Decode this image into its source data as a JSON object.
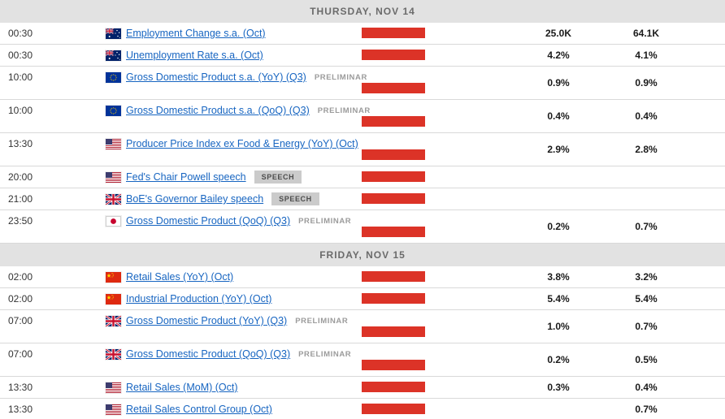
{
  "calendar": {
    "sections": [
      {
        "header": "THURSDAY, NOV 14",
        "rows": [
          {
            "time": "00:30",
            "country": "AU",
            "event": "Employment Change s.a. (Oct)",
            "volatility": "high",
            "consensus": "25.0K",
            "previous": "64.1K"
          },
          {
            "time": "00:30",
            "country": "AU",
            "event": "Unemployment Rate s.a. (Oct)",
            "volatility": "high",
            "consensus": "4.2%",
            "previous": "4.1%"
          },
          {
            "time": "10:00",
            "country": "EU",
            "event": "Gross Domestic Product s.a. (YoY) (Q3)",
            "tag": "PRELIMINAR",
            "volatility": "high",
            "consensus": "0.9%",
            "previous": "0.9%"
          },
          {
            "time": "10:00",
            "country": "EU",
            "event": "Gross Domestic Product s.a. (QoQ) (Q3)",
            "tag": "PRELIMINAR",
            "volatility": "high",
            "consensus": "0.4%",
            "previous": "0.4%"
          },
          {
            "time": "13:30",
            "country": "US",
            "event": "Producer Price Index ex Food & Energy (YoY) (Oct)",
            "volatility": "high",
            "consensus": "2.9%",
            "previous": "2.8%"
          },
          {
            "time": "20:00",
            "country": "US",
            "event": "Fed's Chair Powell speech",
            "badge": "SPEECH",
            "volatility": "high"
          },
          {
            "time": "21:00",
            "country": "GB",
            "event": "BoE's Governor Bailey speech",
            "badge": "SPEECH",
            "volatility": "high"
          },
          {
            "time": "23:50",
            "country": "JP",
            "event": "Gross Domestic Product (QoQ) (Q3)",
            "tag": "PRELIMINAR",
            "volatility": "high",
            "consensus": "0.2%",
            "previous": "0.7%"
          }
        ]
      },
      {
        "header": "FRIDAY, NOV 15",
        "rows": [
          {
            "time": "02:00",
            "country": "CN",
            "event": "Retail Sales (YoY) (Oct)",
            "volatility": "high",
            "consensus": "3.8%",
            "previous": "3.2%"
          },
          {
            "time": "02:00",
            "country": "CN",
            "event": "Industrial Production (YoY) (Oct)",
            "volatility": "high",
            "consensus": "5.4%",
            "previous": "5.4%"
          },
          {
            "time": "07:00",
            "country": "GB",
            "event": "Gross Domestic Product (YoY) (Q3)",
            "tag": "PRELIMINAR",
            "volatility": "high",
            "consensus": "1.0%",
            "previous": "0.7%"
          },
          {
            "time": "07:00",
            "country": "GB",
            "event": "Gross Domestic Product (QoQ) (Q3)",
            "tag": "PRELIMINAR",
            "volatility": "high",
            "consensus": "0.2%",
            "previous": "0.5%"
          },
          {
            "time": "13:30",
            "country": "US",
            "event": "Retail Sales (MoM) (Oct)",
            "volatility": "high",
            "consensus": "0.3%",
            "previous": "0.4%"
          },
          {
            "time": "13:30",
            "country": "US",
            "event": "Retail Sales Control Group (Oct)",
            "volatility": "high",
            "previous": "0.7%"
          }
        ]
      }
    ],
    "colors": {
      "volatility_high_bar": "#dc3327",
      "event_link": "#1765c1",
      "day_header_bg": "#e2e2e2",
      "speech_badge_bg": "#cbcbcb"
    }
  }
}
